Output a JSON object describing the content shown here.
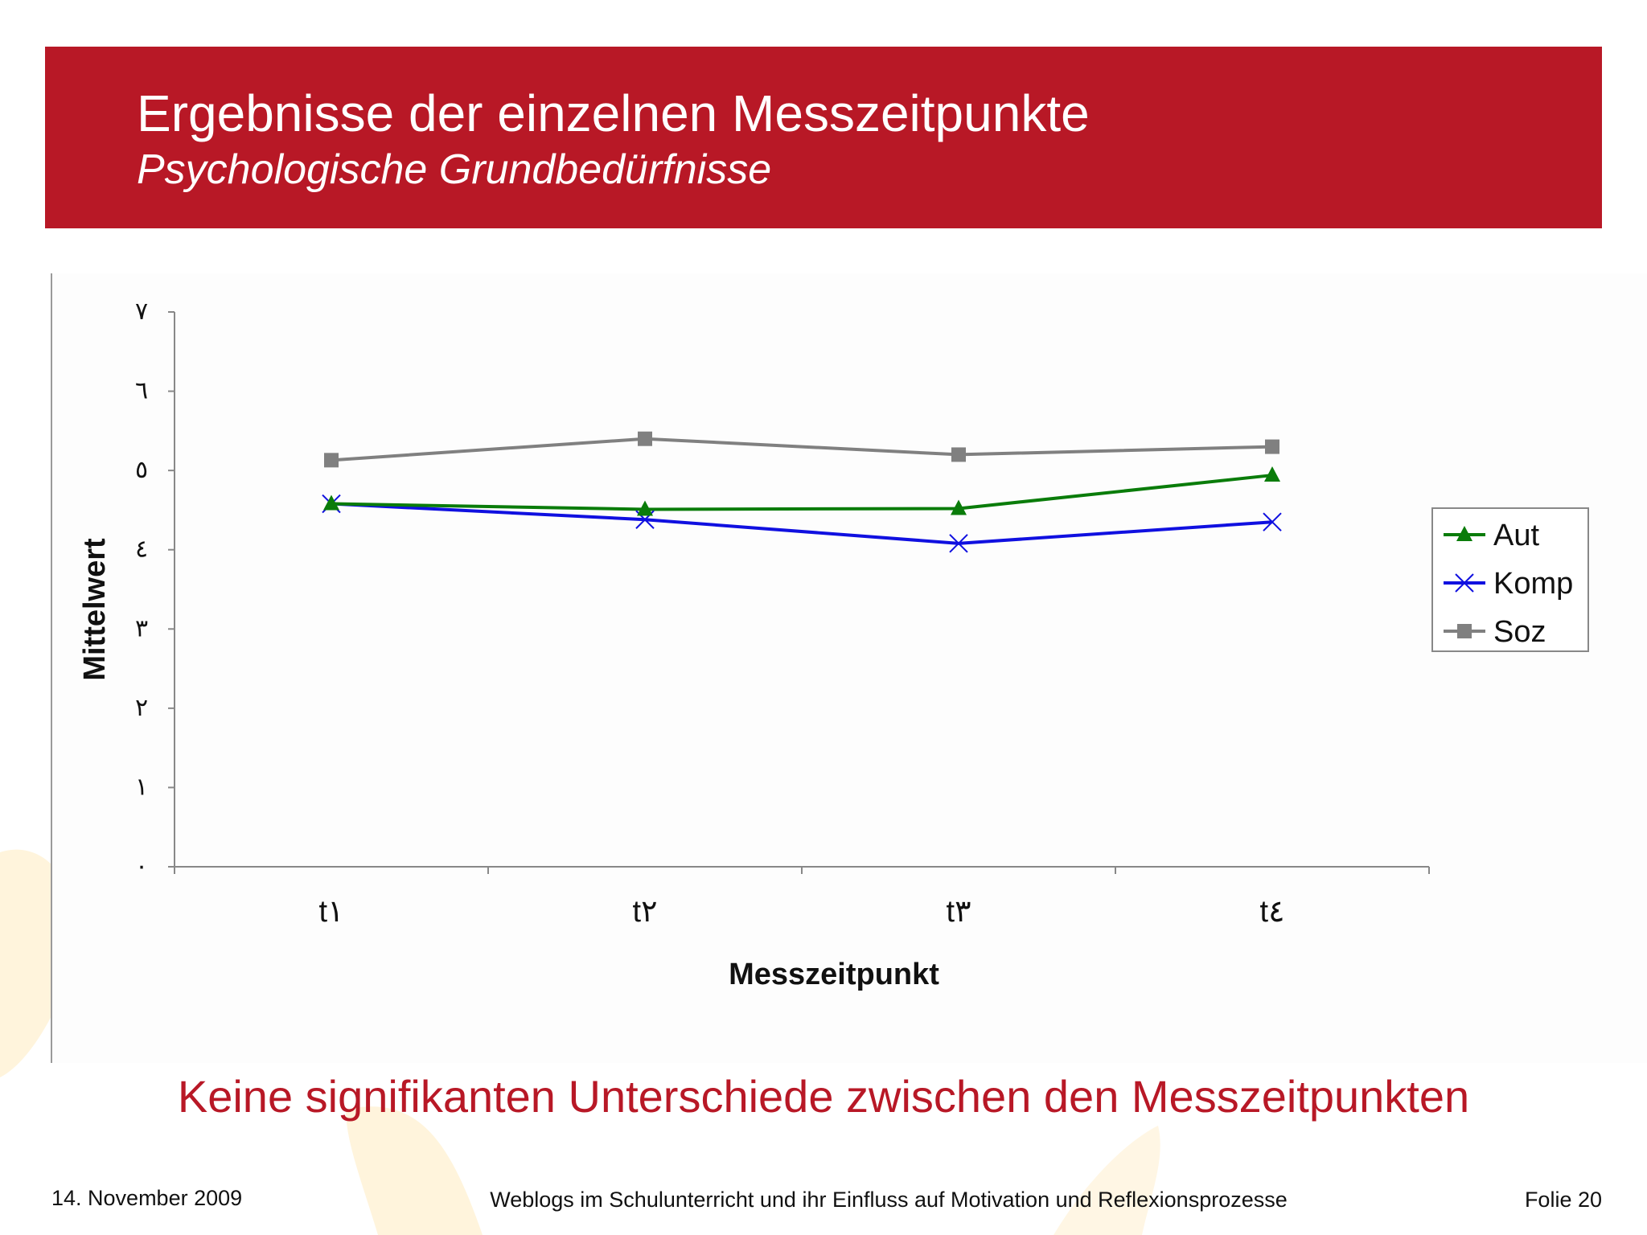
{
  "header": {
    "title": "Ergebnisse der einzelnen Messzeitpunkte",
    "subtitle": "Psychologische Grundbedürfnisse"
  },
  "chart_data": {
    "type": "line",
    "x": [
      "t١",
      "t٢",
      "t٣",
      "t٤"
    ],
    "xlabel": "Messzeitpunkt",
    "ylabel": "Mittelwert",
    "ylim": [
      0,
      7
    ],
    "yticks": [
      0,
      1,
      2,
      3,
      4,
      5,
      6,
      7
    ],
    "ytick_labels": [
      "٠",
      "١",
      "٢",
      "٣",
      "٤",
      "٥",
      "٦",
      "٧"
    ],
    "grid": false,
    "legend_position": "right",
    "series": [
      {
        "name": "Aut",
        "values": [
          4.58,
          4.51,
          4.52,
          4.94
        ],
        "color": "#0a7c0a",
        "marker": "triangle"
      },
      {
        "name": "Komp",
        "values": [
          4.58,
          4.38,
          4.08,
          4.35
        ],
        "color": "#1010e0",
        "marker": "x"
      },
      {
        "name": "Soz",
        "values": [
          5.13,
          5.4,
          5.2,
          5.3
        ],
        "color": "#808080",
        "marker": "square"
      }
    ]
  },
  "conclusion": "Keine signifikanten Unterschiede zwischen den Messzeitpunkten",
  "footer": {
    "date": "14. November 2009",
    "title": "Weblogs im Schulunterricht und ihr Einfluss auf Motivation und Reflexionsprozesse",
    "slide": "Folie 20"
  }
}
